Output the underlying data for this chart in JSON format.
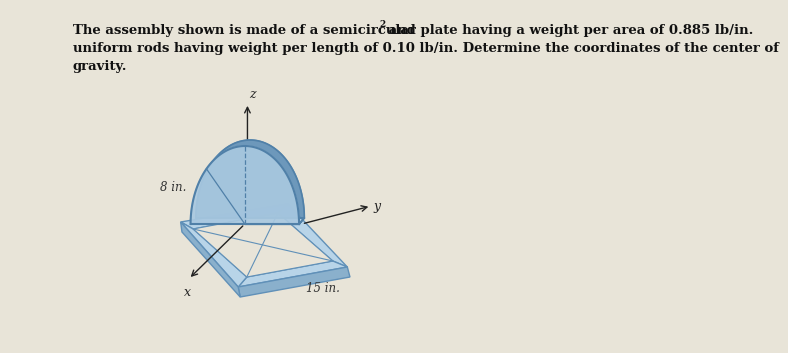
{
  "bg_color": "#e8e4d8",
  "text_line1": "The assembly shown is made of a semicircular plate having a weight per area of 0.885 lb/in.",
  "text_sup": "2",
  "text_line1_end": " and",
  "text_line2": "uniform rods having weight per length of 0.10 lb/in. Determine the coordinates of the center of",
  "text_line3": "gravity.",
  "font_size": 9.5,
  "font_color": "#111111",
  "label_8in": "8 in.",
  "label_15in": "15 in.",
  "label_x": "x",
  "label_y": "y",
  "label_z": "z",
  "semi_fill_front": "#a8c8e0",
  "semi_fill_back": "#6090b8",
  "semi_fill_left": "#c0d8ec",
  "semi_edge": "#5080a8",
  "frame_top": "#b8d4e8",
  "frame_side": "#8ab0cc",
  "frame_inner": "#d8eaf8",
  "frame_edge": "#6090b8",
  "axis_color": "#222222",
  "dim_color": "#333333"
}
